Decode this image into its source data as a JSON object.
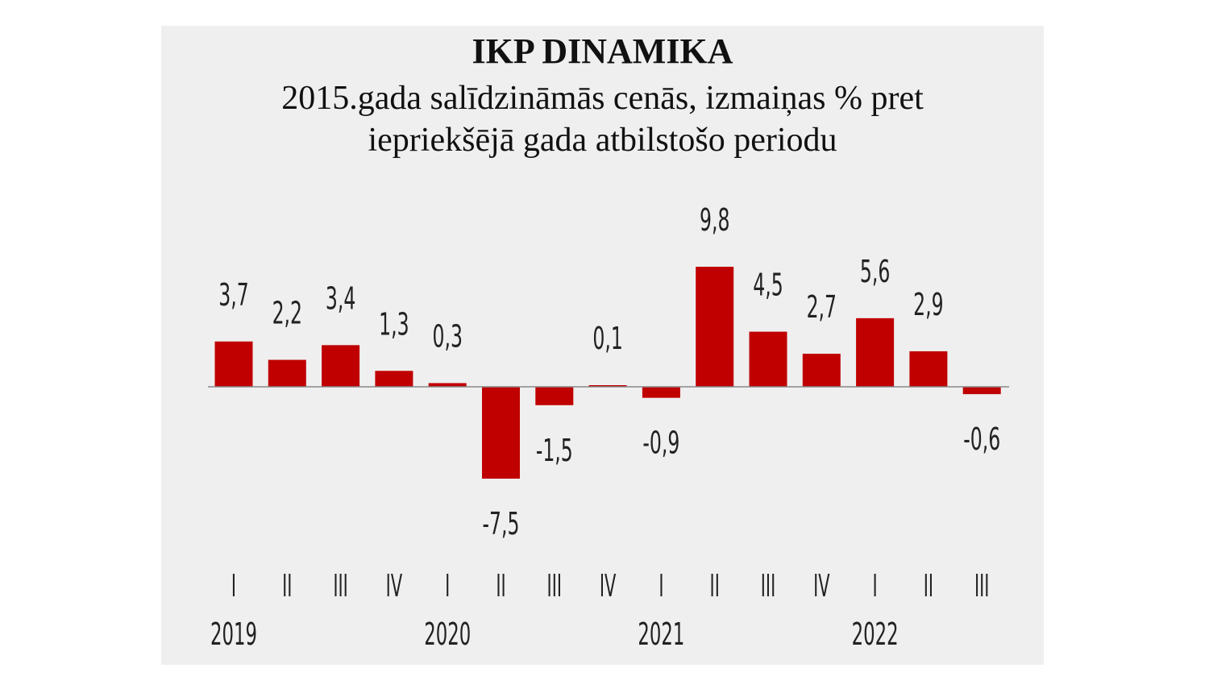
{
  "chart_data": {
    "type": "bar",
    "title": "IKP DINAMIKA",
    "subtitle": "2015.gada salīdzināmās cenās, izmaiņas % pret iepriekšējā gada atbilstošo periodu",
    "categories": [
      "I",
      "II",
      "III",
      "IV",
      "I",
      "II",
      "III",
      "IV",
      "I",
      "II",
      "III",
      "IV",
      "I",
      "II",
      "III"
    ],
    "years": [
      {
        "label": "2019",
        "quarter_index": 0
      },
      {
        "label": "2020",
        "quarter_index": 4
      },
      {
        "label": "2021",
        "quarter_index": 8
      },
      {
        "label": "2022",
        "quarter_index": 12
      }
    ],
    "values": [
      3.7,
      2.2,
      3.4,
      1.3,
      0.3,
      -7.5,
      -1.5,
      0.1,
      -0.9,
      9.8,
      4.5,
      2.7,
      5.6,
      2.9,
      -0.6
    ],
    "value_labels": [
      "3,7",
      "2,2",
      "3,4",
      "1,3",
      "0,3",
      "-7,5",
      "-1,5",
      "0,1",
      "-0,9",
      "9,8",
      "4,5",
      "2,7",
      "5,6",
      "2,9",
      "-0,6"
    ],
    "xlabel": "",
    "ylabel": "",
    "grid": false,
    "colors": {
      "bar": "#c00000",
      "background": "#efefef",
      "axis": "#888888"
    }
  }
}
